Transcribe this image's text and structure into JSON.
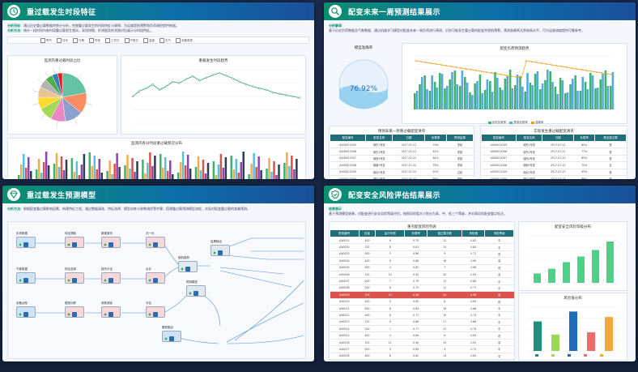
{
  "panels": {
    "p1": {
      "title": "重过载发生时段特征",
      "notes": [
        {
          "label": "分析目标：",
          "text": "通过历史重过载数据的统计分析，挖掘重过载发生的时段特征与规律，为运维提前预警和负荷调控提供依据。"
        },
        {
          "label": "分析方法：",
          "text": "统计一段时间内各时段重过载发生频次，采用饼图、折线图及柱状图对比展示分时段特征。"
        }
      ],
      "filters": [
        "季节",
        "月份",
        "日期",
        "时段",
        "工作日",
        "节假日",
        "温度",
        "天气",
        "设备类型"
      ],
      "pie_title": "监测内重过载时段占比",
      "line_title": "重载发生时段趋势",
      "bar_title": "监测内各分时段重过载频次分布"
    },
    "p2": {
      "title": "配变未来一周预测结果展示",
      "note_label": "分析解读",
      "note_text": "基于历史负荷数据及气象数据，通过机器学习模型对配变未来一周负荷进行预测，识别可能发生重过载的配变并提前预警。预测准确率达到较高水平，可为运维调度提供可靠参考。",
      "gauge_title": "模型准确率",
      "gauge_value": "76.92%",
      "combo_title": "配变负荷预测趋势",
      "legend": [
        "实际负载率",
        "预测负载率",
        "准确率"
      ],
      "table_left_title": "预测未来一周重过载配变清单",
      "table_right_title": "实际发生重过载配变清单",
      "table_left_headers": [
        "配变编号",
        "配变名称",
        "日期",
        "负载率",
        "预测结果"
      ],
      "table_right_headers": [
        "配变编号",
        "配变名称",
        "日期",
        "负载率",
        "是否重过载"
      ],
      "rows_left": [
        [
          "AX00012345",
          "城东1号变",
          "2017-07-21",
          "79%",
          "重载"
        ],
        [
          "AX00012346",
          "城东2号变",
          "2017-07-21",
          "81%",
          "重载"
        ],
        [
          "AX00012347",
          "城西3号变",
          "2017-07-22",
          "84%",
          "重载"
        ],
        [
          "AX00012348",
          "城南5号变",
          "2017-07-22",
          "76%",
          "重载"
        ],
        [
          "AX00012349",
          "城北2号变",
          "2017-07-23",
          "92%",
          "过载"
        ],
        [
          "AX00012350",
          "城中1号变",
          "2017-07-23",
          "88%",
          "重载"
        ],
        [
          "AX00012351",
          "新区4号变",
          "2017-07-24",
          "78%",
          "重载"
        ],
        [
          "AX00012352",
          "新区6号变",
          "2017-07-24",
          "83%",
          "重载"
        ]
      ],
      "rows_right": [
        [
          "AX00012345",
          "城东1号变",
          "2017-07-21",
          "80%",
          "是"
        ],
        [
          "AX00012346",
          "城东2号变",
          "2017-07-21",
          "77%",
          "是"
        ],
        [
          "AX00012347",
          "城西3号变",
          "2017-07-22",
          "85%",
          "是"
        ],
        [
          "AX00012348",
          "城南5号变",
          "2017-07-22",
          "70%",
          "否"
        ],
        [
          "AX00012349",
          "城北2号变",
          "2017-07-23",
          "95%",
          "是"
        ],
        [
          "AX00012350",
          "城中1号变",
          "2017-07-23",
          "86%",
          "是"
        ],
        [
          "AX00012351",
          "新区4号变",
          "2017-07-24",
          "74%",
          "否"
        ],
        [
          "AX00012352",
          "新区6号变",
          "2017-07-24",
          "82%",
          "是"
        ]
      ]
    },
    "p3": {
      "title": "重过载发生预测模型",
      "note_label": "分析方法：",
      "note_text": "根据配变重过载影响因素，构建特征工程，通过数据清洗、特征选择、模型训练与参数调优等步骤，搭建重过载预测模型流程，实现对配变重过载的准确预测。",
      "nodes": [
        "负荷数据",
        "特征提取",
        "数据清洗",
        "归一化",
        "气象数据",
        "特征选择",
        "缺失补全",
        "合并",
        "设备台账",
        "模型训练",
        "参数调优",
        "评估",
        "随机森林",
        "结果输出",
        "预测模型",
        "模型融合"
      ]
    },
    "p4": {
      "title": "配变安全风险评估结果展示",
      "note_label": "结果展示",
      "note_text": "基于预测模型结果，对配变进行安全风险等级评估，按照风险值大小划分为高、中、低三个等级，并对高风险配变重点标注。",
      "table_title": "重点配变风险列表",
      "headers": [
        "配变编号",
        "容量",
        "运行年限",
        "负载率",
        "重过载次数",
        "风险值",
        "风险等级"
      ],
      "rows": [
        [
          "AX0001",
          "400",
          "6",
          "0.75",
          "12",
          "0.82",
          "中"
        ],
        [
          "AX0002",
          "315",
          "8",
          "0.81",
          "15",
          "0.85",
          "中"
        ],
        [
          "AX0003",
          "500",
          "5",
          "0.68",
          "9",
          "0.71",
          "低"
        ],
        [
          "AX0004",
          "400",
          "9",
          "0.88",
          "18",
          "0.90",
          "高"
        ],
        [
          "AX0005",
          "630",
          "4",
          "0.62",
          "7",
          "0.66",
          "低"
        ],
        [
          "AX0006",
          "315",
          "10",
          "0.92",
          "20",
          "0.93",
          "高"
        ],
        [
          "AX0007",
          "400",
          "7",
          "0.79",
          "13",
          "0.80",
          "中"
        ],
        [
          "AX0008",
          "500",
          "6",
          "0.73",
          "11",
          "0.77",
          "中"
        ],
        [
          "AX0009",
          "315",
          "12",
          "0.98",
          "24",
          "0.98",
          "高"
        ],
        [
          "AX0010",
          "400",
          "5",
          "0.65",
          "8",
          "0.69",
          "低"
        ],
        [
          "AX0011",
          "630",
          "8",
          "0.84",
          "16",
          "0.86",
          "中"
        ],
        [
          "AX0012",
          "400",
          "6",
          "0.71",
          "10",
          "0.74",
          "中"
        ],
        [
          "AX0013",
          "315",
          "9",
          "0.86",
          "17",
          "0.88",
          "中"
        ],
        [
          "AX0014",
          "500",
          "7",
          "0.77",
          "12",
          "0.79",
          "中"
        ],
        [
          "AX0015",
          "400",
          "4",
          "0.60",
          "6",
          "0.63",
          "低"
        ],
        [
          "AX0016",
          "315",
          "11",
          "0.90",
          "19",
          "0.91",
          "高"
        ],
        [
          "AX0017",
          "630",
          "5",
          "0.69",
          "9",
          "0.72",
          "中"
        ],
        [
          "AX0018",
          "400",
          "8",
          "0.82",
          "14",
          "0.84",
          "中"
        ]
      ],
      "highlight_row": 8,
      "chart1_title": "配变安全风险等级分布",
      "chart2_title": "风险值分布"
    }
  },
  "chart_data": [
    {
      "type": "pie",
      "title": "监测内重过载时段占比",
      "values": [
        22,
        14,
        12,
        10,
        9,
        8,
        7,
        6,
        5,
        4,
        3
      ]
    },
    {
      "type": "line",
      "title": "重载发生时段趋势",
      "values": [
        40,
        48,
        52,
        58,
        50,
        55,
        62,
        60,
        66,
        70,
        64,
        68,
        72,
        75,
        71,
        67,
        62,
        58,
        55,
        52,
        50,
        46,
        44,
        42,
        40,
        38
      ]
    },
    {
      "type": "bar",
      "title": "监测内各分时段重过载频次分布",
      "series_count": 6
    },
    {
      "type": "bar",
      "title": "配变安全风险等级分布",
      "values": [
        20,
        30,
        44,
        56,
        70,
        88
      ]
    },
    {
      "type": "bar",
      "title": "风险值分布",
      "values": [
        54,
        30,
        72,
        34,
        62
      ]
    }
  ]
}
